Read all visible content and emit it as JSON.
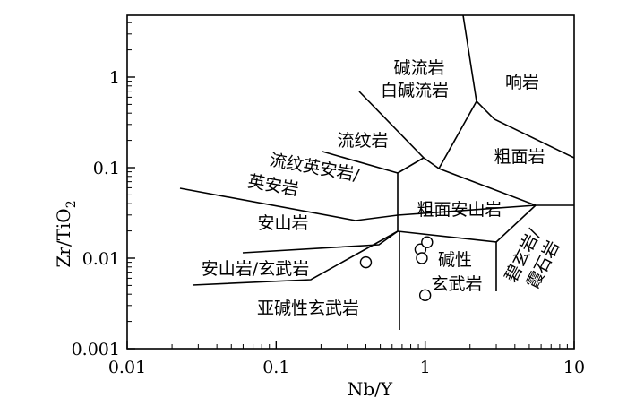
{
  "chart_data": {
    "type": "scatter",
    "xlabel": "Nb/Y",
    "ylabel_main": "Zr/TiO",
    "ylabel_sub": "2",
    "x_scale": "log",
    "y_scale": "log",
    "xlim": [
      0.01,
      10
    ],
    "ylim": [
      0.001,
      5
    ],
    "grid": false,
    "x_ticks": [
      {
        "value": 0.01,
        "label": "0.01"
      },
      {
        "value": 0.1,
        "label": "0.1"
      },
      {
        "value": 1,
        "label": "1"
      },
      {
        "value": 10,
        "label": "10"
      }
    ],
    "y_ticks": [
      {
        "value": 0.001,
        "label": "0.001"
      },
      {
        "value": 0.01,
        "label": "0.01"
      },
      {
        "value": 0.1,
        "label": "0.1"
      },
      {
        "value": 1,
        "label": "1"
      }
    ],
    "points": [
      {
        "x": 0.4,
        "y": 0.009
      },
      {
        "x": 0.93,
        "y": 0.0125
      },
      {
        "x": 1.03,
        "y": 0.015
      },
      {
        "x": 0.95,
        "y": 0.01
      },
      {
        "x": 1.0,
        "y": 0.0039
      }
    ],
    "field_labels": [
      {
        "id": "comendite-pantellerite",
        "text": "碱流岩"
      },
      {
        "id": "comendite-pantellerite-2",
        "text": "白碱流岩"
      },
      {
        "id": "phonolite",
        "text": "响岩"
      },
      {
        "id": "rhyolite",
        "text": "流纹岩"
      },
      {
        "id": "trachyte",
        "text": "粗面岩"
      },
      {
        "id": "rhyodacite-dacite-1",
        "text": "流纹英安岩/"
      },
      {
        "id": "rhyodacite-dacite-2",
        "text": "英安岩"
      },
      {
        "id": "trachyandesite",
        "text": "粗面安山岩"
      },
      {
        "id": "andesite",
        "text": "安山岩"
      },
      {
        "id": "andesite-basalt",
        "text": "安山岩/玄武岩"
      },
      {
        "id": "alkali-basalt-1",
        "text": "碱性"
      },
      {
        "id": "alkali-basalt-2",
        "text": "玄武岩"
      },
      {
        "id": "subalkaline-basalt",
        "text": "亚碱性玄武岩"
      },
      {
        "id": "basanite-nephelinite-1",
        "text": "碧玄岩/"
      },
      {
        "id": "basanite-nephelinite-2",
        "text": "霞石岩"
      }
    ]
  }
}
